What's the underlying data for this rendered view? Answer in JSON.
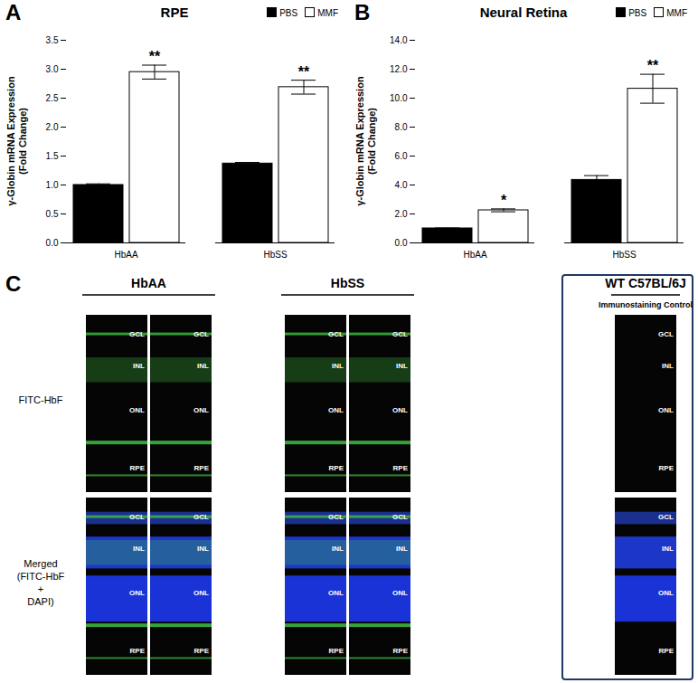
{
  "chart_data": [
    {
      "type": "bar",
      "panel": "A",
      "title": "RPE",
      "ylabel": "γ-Globin mRNA Expression\n(Fold Change)",
      "categories": [
        "HbAA",
        "HbSS"
      ],
      "series": [
        {
          "name": "PBS",
          "color": "#000000",
          "values": [
            1.0,
            1.37
          ],
          "errors": [
            0.02,
            0.02
          ]
        },
        {
          "name": "MMF",
          "color": "#ffffff",
          "values": [
            2.95,
            2.69
          ],
          "errors": [
            0.12,
            0.12
          ],
          "annotations": [
            "**",
            "**"
          ]
        }
      ],
      "ylim": [
        0,
        3.5
      ],
      "yticks": [
        {
          "value": 0,
          "label": "0.0"
        },
        0.5,
        {
          "value": 1,
          "label": "1.0"
        },
        1.5,
        {
          "value": 2,
          "label": "2.0"
        },
        2.5,
        {
          "value": 3,
          "label": "3.0"
        },
        3.5
      ],
      "legend": "top-right"
    },
    {
      "type": "bar",
      "panel": "B",
      "title": "Neural Retina",
      "ylabel": "γ-Globin mRNA Expression\n(Fold Change)",
      "categories": [
        "HbAA",
        "HbSS"
      ],
      "series": [
        {
          "name": "PBS",
          "color": "#000000",
          "values": [
            1.0,
            4.35
          ],
          "errors": [
            0.03,
            0.3
          ]
        },
        {
          "name": "MMF",
          "color": "#ffffff",
          "values": [
            2.25,
            10.65
          ],
          "errors": [
            0.1,
            1.0
          ],
          "annotations": [
            "*",
            "**"
          ]
        }
      ],
      "ylim": [
        0,
        14
      ],
      "yticks": [
        {
          "value": 0,
          "label": "0.0"
        },
        {
          "value": 2,
          "label": "2.0"
        },
        {
          "value": 4,
          "label": "4.0"
        },
        {
          "value": 6,
          "label": "6.0"
        },
        {
          "value": 8,
          "label": "8.0"
        },
        {
          "value": 10,
          "label": "10.0"
        },
        {
          "value": 12,
          "label": "12.0"
        },
        {
          "value": 14,
          "label": "14.0"
        }
      ],
      "legend": "top-right"
    }
  ],
  "panel_c": {
    "label": "C",
    "rows": [
      [
        "FITC-HbF"
      ],
      [
        "Merged",
        "(FITC-HbF",
        "+",
        "DAPI)"
      ]
    ],
    "groups": [
      {
        "title": "HbAA",
        "images": [
          [
            "GCL",
            "INL",
            "ONL",
            "RPE"
          ],
          [
            "GCL",
            "INL",
            "ONL",
            "RPE"
          ]
        ]
      },
      {
        "title": "HbSS",
        "images": [
          [
            "GCL",
            "INL",
            "ONL",
            "RPE"
          ],
          [
            "GCL",
            "INL",
            "ONL",
            "RPE"
          ]
        ]
      },
      {
        "title": "WT C57BL/6J",
        "subtitle": "Immunostaining Control",
        "images": [
          [
            "GCL",
            "INL",
            "ONL",
            "RPE"
          ]
        ]
      }
    ]
  }
}
